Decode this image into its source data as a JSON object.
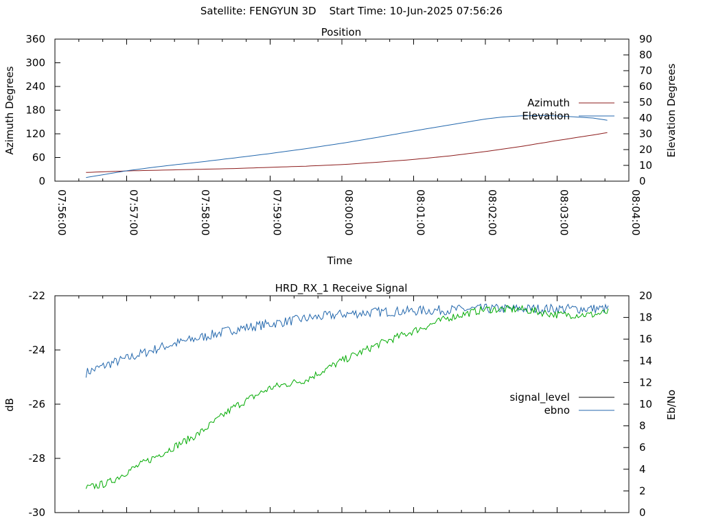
{
  "header": {
    "title": "Satellite: FENGYUN 3D    Start Time: 10-Jun-2025 07:56:26"
  },
  "chart_data": [
    {
      "type": "line",
      "title": "Position",
      "xlabel": "Time",
      "ylabel": "Azimuth Degrees",
      "y2label": "Elevation Degrees",
      "x_ticks": [
        "07:56:00",
        "07:57:00",
        "07:58:00",
        "07:59:00",
        "08:00:00",
        "08:01:00",
        "08:02:00",
        "08:03:00",
        "08:04:00"
      ],
      "xlim": [
        "07:56:00",
        "08:04:00"
      ],
      "ylim": [
        0,
        360
      ],
      "y_ticks": [
        "0",
        "60",
        "120",
        "180",
        "240",
        "300",
        "360"
      ],
      "y2lim": [
        0,
        90
      ],
      "y2_ticks": [
        "0",
        "10",
        "20",
        "30",
        "40",
        "50",
        "60",
        "70",
        "80",
        "90"
      ],
      "grid": false,
      "legend_position": "right",
      "series": [
        {
          "name": "Azimuth",
          "axis": "left",
          "color": "#8b1a1a",
          "x": [
            "07:56:26",
            "07:57:00",
            "07:57:30",
            "07:58:00",
            "07:58:30",
            "07:59:00",
            "07:59:30",
            "08:00:00",
            "08:00:30",
            "08:01:00",
            "08:01:30",
            "08:02:00",
            "08:02:30",
            "08:03:00",
            "08:03:30",
            "08:03:44"
          ],
          "values": [
            22,
            26,
            28,
            30,
            32,
            35,
            38,
            42,
            48,
            55,
            64,
            75,
            88,
            103,
            117,
            124
          ]
        },
        {
          "name": "Elevation",
          "axis": "right",
          "color": "#2166ac",
          "x": [
            "07:56:26",
            "07:57:00",
            "07:57:30",
            "07:58:00",
            "07:58:30",
            "07:59:00",
            "07:59:30",
            "08:00:00",
            "08:00:30",
            "08:01:00",
            "08:01:30",
            "08:02:00",
            "08:02:15",
            "08:02:30",
            "08:02:50",
            "08:03:00",
            "08:03:30",
            "08:03:44"
          ],
          "values": [
            2.3,
            6.6,
            9.5,
            12.0,
            14.7,
            17.5,
            20.6,
            24.0,
            27.8,
            31.8,
            35.6,
            39.4,
            40.7,
            41.4,
            41.6,
            41.4,
            40.0,
            38.4
          ]
        }
      ]
    },
    {
      "type": "line",
      "title": "HRD_RX_1 Receive Signal",
      "xlabel": "",
      "ylabel": "dB",
      "y2label": "Eb/No",
      "ylim": [
        -30,
        -22
      ],
      "y_ticks": [
        "-30",
        "-28",
        "-26",
        "-24",
        "-22"
      ],
      "y2lim": [
        0,
        20
      ],
      "y2_ticks": [
        "0",
        "2",
        "4",
        "6",
        "8",
        "10",
        "12",
        "14",
        "16",
        "18",
        "20"
      ],
      "x_ticks_unlabeled": true,
      "grid": false,
      "legend_position": "right",
      "legend": [
        {
          "name": "signal_level",
          "color": "#000000"
        },
        {
          "name": "ebno",
          "color": "#2166ac"
        }
      ],
      "series": [
        {
          "name": "ebno",
          "axis": "right",
          "color": "#2166ac",
          "x": [
            "07:56:26",
            "07:56:45",
            "07:57:00",
            "07:57:30",
            "07:58:00",
            "07:58:30",
            "07:59:00",
            "07:59:30",
            "08:00:00",
            "08:00:30",
            "08:01:00",
            "08:01:30",
            "08:02:00",
            "08:02:30",
            "08:03:00",
            "08:03:30",
            "08:03:44"
          ],
          "values": [
            12.9,
            13.7,
            14.2,
            15.3,
            16.1,
            16.9,
            17.4,
            17.9,
            18.3,
            18.5,
            18.6,
            18.7,
            18.8,
            18.8,
            18.8,
            18.8,
            18.8
          ]
        },
        {
          "name": "",
          "axis": "left",
          "color": "#00aa00",
          "x": [
            "07:56:26",
            "07:56:45",
            "07:57:00",
            "07:57:30",
            "07:58:00",
            "07:58:30",
            "07:59:00",
            "07:59:30",
            "08:00:00",
            "08:00:30",
            "08:01:00",
            "08:01:30",
            "08:02:00",
            "08:02:30",
            "08:03:00",
            "08:03:30",
            "08:03:44"
          ],
          "values": [
            -29.1,
            -28.9,
            -28.5,
            -27.8,
            -27.1,
            -26.1,
            -25.4,
            -25.1,
            -24.4,
            -23.8,
            -23.3,
            -22.8,
            -22.5,
            -22.5,
            -22.7,
            -22.7,
            -22.6
          ]
        }
      ]
    }
  ]
}
